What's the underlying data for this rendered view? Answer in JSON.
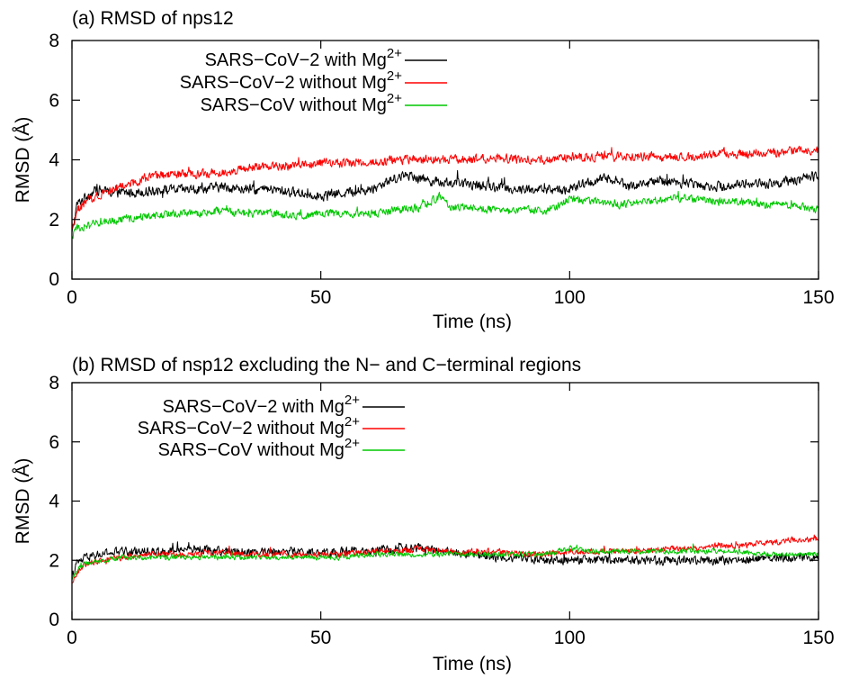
{
  "chart_data": [
    {
      "type": "line",
      "title": "(a) RMSD of nps12",
      "xlabel": "Time (ns)",
      "ylabel": "RMSD (Å)",
      "xlim": [
        0,
        150
      ],
      "ylim": [
        0,
        8
      ],
      "xticks": [
        "0",
        "50",
        "100",
        "150"
      ],
      "yticks": [
        "0",
        "2",
        "4",
        "6",
        "8"
      ],
      "grid": false,
      "legend_position": "top-left",
      "series": [
        {
          "name": "SARS−CoV−2 with Mg",
          "name_sup": "2+",
          "color": "#000000",
          "noise": 0.22,
          "points": [
            [
              0,
              1.5
            ],
            [
              1,
              2.5
            ],
            [
              3,
              2.8
            ],
            [
              5,
              3.0
            ],
            [
              8,
              2.9
            ],
            [
              12,
              2.9
            ],
            [
              18,
              3.0
            ],
            [
              25,
              3.0
            ],
            [
              30,
              3.1
            ],
            [
              35,
              3.0
            ],
            [
              40,
              3.0
            ],
            [
              45,
              2.9
            ],
            [
              50,
              2.8
            ],
            [
              55,
              2.9
            ],
            [
              60,
              3.0
            ],
            [
              65,
              3.4
            ],
            [
              68,
              3.5
            ],
            [
              72,
              3.3
            ],
            [
              78,
              3.2
            ],
            [
              85,
              3.1
            ],
            [
              90,
              3.0
            ],
            [
              95,
              3.0
            ],
            [
              100,
              3.0
            ],
            [
              103,
              3.2
            ],
            [
              108,
              3.4
            ],
            [
              112,
              3.1
            ],
            [
              118,
              3.3
            ],
            [
              125,
              3.2
            ],
            [
              130,
              3.1
            ],
            [
              135,
              3.2
            ],
            [
              140,
              3.2
            ],
            [
              145,
              3.3
            ],
            [
              150,
              3.5
            ]
          ]
        },
        {
          "name": "SARS−CoV−2 without Mg",
          "name_sup": "2+",
          "color": "#ff0000",
          "noise": 0.2,
          "points": [
            [
              0,
              1.6
            ],
            [
              1,
              2.3
            ],
            [
              3,
              2.6
            ],
            [
              6,
              2.9
            ],
            [
              10,
              3.1
            ],
            [
              15,
              3.4
            ],
            [
              20,
              3.5
            ],
            [
              25,
              3.5
            ],
            [
              30,
              3.6
            ],
            [
              35,
              3.7
            ],
            [
              40,
              3.8
            ],
            [
              45,
              3.8
            ],
            [
              50,
              3.9
            ],
            [
              55,
              3.9
            ],
            [
              60,
              3.9
            ],
            [
              65,
              4.0
            ],
            [
              70,
              4.0
            ],
            [
              75,
              4.0
            ],
            [
              80,
              4.0
            ],
            [
              85,
              4.1
            ],
            [
              90,
              4.0
            ],
            [
              95,
              4.0
            ],
            [
              100,
              4.1
            ],
            [
              105,
              4.1
            ],
            [
              110,
              4.1
            ],
            [
              115,
              4.1
            ],
            [
              120,
              4.1
            ],
            [
              125,
              4.1
            ],
            [
              130,
              4.2
            ],
            [
              135,
              4.2
            ],
            [
              140,
              4.2
            ],
            [
              145,
              4.3
            ],
            [
              150,
              4.3
            ]
          ]
        },
        {
          "name": "SARS−CoV without Mg",
          "name_sup": "2+",
          "color": "#00c800",
          "noise": 0.18,
          "points": [
            [
              0,
              1.4
            ],
            [
              1,
              1.7
            ],
            [
              3,
              1.8
            ],
            [
              6,
              1.9
            ],
            [
              10,
              2.0
            ],
            [
              15,
              2.1
            ],
            [
              20,
              2.2
            ],
            [
              25,
              2.2
            ],
            [
              30,
              2.3
            ],
            [
              35,
              2.2
            ],
            [
              40,
              2.2
            ],
            [
              45,
              2.1
            ],
            [
              50,
              2.2
            ],
            [
              55,
              2.2
            ],
            [
              60,
              2.2
            ],
            [
              65,
              2.3
            ],
            [
              70,
              2.4
            ],
            [
              74,
              2.8
            ],
            [
              76,
              2.4
            ],
            [
              80,
              2.4
            ],
            [
              85,
              2.3
            ],
            [
              90,
              2.3
            ],
            [
              95,
              2.3
            ],
            [
              98,
              2.5
            ],
            [
              100,
              2.7
            ],
            [
              105,
              2.6
            ],
            [
              110,
              2.5
            ],
            [
              115,
              2.6
            ],
            [
              120,
              2.7
            ],
            [
              125,
              2.7
            ],
            [
              130,
              2.6
            ],
            [
              135,
              2.6
            ],
            [
              140,
              2.5
            ],
            [
              145,
              2.5
            ],
            [
              150,
              2.3
            ]
          ]
        }
      ]
    },
    {
      "type": "line",
      "title": "(b) RMSD of nsp12 excluding the N− and C−terminal regions",
      "xlabel": "Time (ns)",
      "ylabel": "RMSD (Å)",
      "xlim": [
        0,
        150
      ],
      "ylim": [
        0,
        8
      ],
      "xticks": [
        "0",
        "50",
        "100",
        "150"
      ],
      "yticks": [
        "0",
        "2",
        "4",
        "6",
        "8"
      ],
      "grid": false,
      "legend_position": "top-left",
      "series": [
        {
          "name": "SARS−CoV−2 with Mg",
          "name_sup": "2+",
          "color": "#000000",
          "noise": 0.2,
          "points": [
            [
              0,
              1.4
            ],
            [
              1,
              1.9
            ],
            [
              3,
              2.1
            ],
            [
              6,
              2.2
            ],
            [
              10,
              2.3
            ],
            [
              15,
              2.3
            ],
            [
              20,
              2.3
            ],
            [
              25,
              2.4
            ],
            [
              30,
              2.3
            ],
            [
              35,
              2.3
            ],
            [
              40,
              2.3
            ],
            [
              45,
              2.3
            ],
            [
              50,
              2.2
            ],
            [
              55,
              2.3
            ],
            [
              60,
              2.3
            ],
            [
              65,
              2.4
            ],
            [
              70,
              2.4
            ],
            [
              75,
              2.3
            ],
            [
              80,
              2.2
            ],
            [
              85,
              2.1
            ],
            [
              90,
              2.1
            ],
            [
              95,
              2.0
            ],
            [
              100,
              2.0
            ],
            [
              105,
              2.0
            ],
            [
              110,
              2.0
            ],
            [
              115,
              2.0
            ],
            [
              120,
              2.0
            ],
            [
              125,
              2.0
            ],
            [
              130,
              2.0
            ],
            [
              135,
              2.0
            ],
            [
              140,
              2.1
            ],
            [
              145,
              2.1
            ],
            [
              150,
              2.1
            ]
          ]
        },
        {
          "name": "SARS−CoV−2 without Mg",
          "name_sup": "2+",
          "color": "#ff0000",
          "noise": 0.14,
          "points": [
            [
              0,
              1.2
            ],
            [
              1,
              1.6
            ],
            [
              3,
              1.9
            ],
            [
              6,
              2.0
            ],
            [
              10,
              2.1
            ],
            [
              15,
              2.2
            ],
            [
              20,
              2.2
            ],
            [
              25,
              2.2
            ],
            [
              30,
              2.3
            ],
            [
              35,
              2.2
            ],
            [
              40,
              2.2
            ],
            [
              45,
              2.2
            ],
            [
              50,
              2.2
            ],
            [
              55,
              2.2
            ],
            [
              60,
              2.3
            ],
            [
              65,
              2.3
            ],
            [
              70,
              2.4
            ],
            [
              75,
              2.3
            ],
            [
              80,
              2.3
            ],
            [
              85,
              2.3
            ],
            [
              90,
              2.2
            ],
            [
              95,
              2.2
            ],
            [
              100,
              2.3
            ],
            [
              105,
              2.3
            ],
            [
              110,
              2.3
            ],
            [
              115,
              2.3
            ],
            [
              120,
              2.4
            ],
            [
              125,
              2.4
            ],
            [
              130,
              2.5
            ],
            [
              135,
              2.5
            ],
            [
              140,
              2.6
            ],
            [
              145,
              2.7
            ],
            [
              150,
              2.7
            ]
          ]
        },
        {
          "name": "SARS−CoV without Mg",
          "name_sup": "2+",
          "color": "#00c800",
          "noise": 0.12,
          "points": [
            [
              0,
              1.3
            ],
            [
              1,
              1.7
            ],
            [
              3,
              1.9
            ],
            [
              6,
              2.0
            ],
            [
              10,
              2.1
            ],
            [
              15,
              2.1
            ],
            [
              20,
              2.1
            ],
            [
              25,
              2.1
            ],
            [
              30,
              2.1
            ],
            [
              35,
              2.1
            ],
            [
              40,
              2.1
            ],
            [
              45,
              2.1
            ],
            [
              50,
              2.1
            ],
            [
              55,
              2.1
            ],
            [
              60,
              2.2
            ],
            [
              65,
              2.2
            ],
            [
              70,
              2.2
            ],
            [
              75,
              2.2
            ],
            [
              80,
              2.2
            ],
            [
              85,
              2.2
            ],
            [
              90,
              2.2
            ],
            [
              95,
              2.2
            ],
            [
              100,
              2.4
            ],
            [
              105,
              2.3
            ],
            [
              110,
              2.3
            ],
            [
              115,
              2.3
            ],
            [
              120,
              2.3
            ],
            [
              125,
              2.3
            ],
            [
              130,
              2.3
            ],
            [
              135,
              2.3
            ],
            [
              140,
              2.2
            ],
            [
              145,
              2.2
            ],
            [
              150,
              2.2
            ]
          ]
        }
      ]
    }
  ]
}
